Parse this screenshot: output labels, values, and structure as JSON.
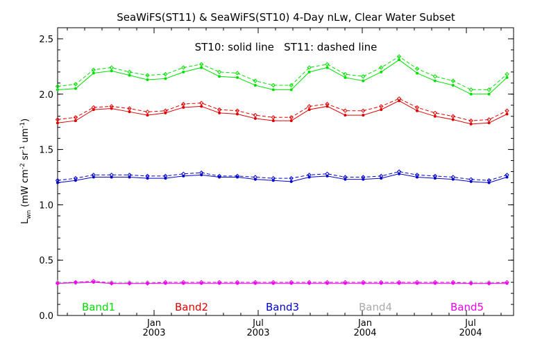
{
  "chart_data": {
    "type": "line",
    "title": "SeaWiFS(ST11) & SeaWiFS(ST10) 4-Day nLw, Clear Water Subset",
    "annotation": "ST10: solid line   ST11: dashed line",
    "ylabel": {
      "main": "L",
      "sub": "wn",
      "rest1": " (mW cm",
      "sup1": "-2",
      "rest2": " sr",
      "sup2": "-1",
      "rest3": " um",
      "sup3": "-1",
      "rest4": ")"
    },
    "ylim": [
      0,
      2.6
    ],
    "yticks": [
      0.0,
      0.5,
      1.0,
      1.5,
      2.0,
      2.5
    ],
    "ytick_labels": [
      "0.0",
      "0.5",
      "1.0",
      "1.5",
      "2.0",
      "2.5"
    ],
    "xticks": [
      {
        "month": "Jan",
        "year": "2003"
      },
      {
        "month": "Jul",
        "year": "2003"
      },
      {
        "month": "Jan",
        "year": "2004"
      },
      {
        "month": "Jul",
        "year": "2004"
      }
    ],
    "legend": [
      "Band1",
      "Band2",
      "Band3",
      "Band4",
      "Band5"
    ],
    "series": [
      {
        "name": "Band1",
        "color": "#00e000",
        "solid": [
          2.04,
          2.05,
          2.19,
          2.21,
          2.17,
          2.13,
          2.14,
          2.2,
          2.24,
          2.16,
          2.15,
          2.08,
          2.04,
          2.04,
          2.2,
          2.24,
          2.15,
          2.12,
          2.2,
          2.31,
          2.19,
          2.12,
          2.08,
          2.0,
          2.0,
          2.15
        ],
        "dashed": [
          2.07,
          2.09,
          2.22,
          2.24,
          2.2,
          2.17,
          2.18,
          2.24,
          2.27,
          2.2,
          2.19,
          2.12,
          2.08,
          2.08,
          2.24,
          2.27,
          2.18,
          2.16,
          2.24,
          2.34,
          2.23,
          2.16,
          2.12,
          2.04,
          2.04,
          2.18
        ]
      },
      {
        "name": "Band2",
        "color": "#e00000",
        "solid": [
          1.74,
          1.76,
          1.86,
          1.87,
          1.84,
          1.81,
          1.83,
          1.88,
          1.89,
          1.83,
          1.82,
          1.78,
          1.76,
          1.76,
          1.86,
          1.89,
          1.81,
          1.81,
          1.86,
          1.94,
          1.85,
          1.8,
          1.77,
          1.73,
          1.74,
          1.82
        ],
        "dashed": [
          1.77,
          1.79,
          1.88,
          1.89,
          1.87,
          1.84,
          1.85,
          1.91,
          1.92,
          1.86,
          1.85,
          1.81,
          1.79,
          1.79,
          1.89,
          1.91,
          1.85,
          1.85,
          1.89,
          1.96,
          1.88,
          1.83,
          1.8,
          1.76,
          1.77,
          1.85
        ]
      },
      {
        "name": "Band3",
        "color": "#0000cc",
        "solid": [
          1.2,
          1.22,
          1.25,
          1.25,
          1.25,
          1.24,
          1.24,
          1.26,
          1.27,
          1.25,
          1.25,
          1.23,
          1.22,
          1.21,
          1.25,
          1.26,
          1.23,
          1.23,
          1.24,
          1.28,
          1.25,
          1.24,
          1.23,
          1.21,
          1.2,
          1.25
        ],
        "dashed": [
          1.22,
          1.24,
          1.27,
          1.27,
          1.27,
          1.26,
          1.26,
          1.28,
          1.29,
          1.26,
          1.26,
          1.25,
          1.24,
          1.24,
          1.27,
          1.28,
          1.25,
          1.25,
          1.26,
          1.3,
          1.27,
          1.26,
          1.25,
          1.23,
          1.22,
          1.27
        ]
      },
      {
        "name": "Band4",
        "color": "#aaaaaa",
        "solid": [
          0.29,
          0.29,
          0.3,
          0.29,
          0.29,
          0.29,
          0.29,
          0.29,
          0.29,
          0.29,
          0.29,
          0.29,
          0.29,
          0.29,
          0.29,
          0.29,
          0.29,
          0.29,
          0.29,
          0.29,
          0.29,
          0.29,
          0.29,
          0.29,
          0.29,
          0.29
        ],
        "dashed": [
          0.3,
          0.3,
          0.31,
          0.3,
          0.3,
          0.3,
          0.3,
          0.3,
          0.3,
          0.3,
          0.3,
          0.3,
          0.3,
          0.3,
          0.3,
          0.3,
          0.3,
          0.3,
          0.3,
          0.3,
          0.3,
          0.3,
          0.3,
          0.3,
          0.3,
          0.3
        ]
      },
      {
        "name": "Band5",
        "color": "#ee00ee",
        "solid": [
          0.29,
          0.3,
          0.3,
          0.29,
          0.29,
          0.29,
          0.29,
          0.29,
          0.29,
          0.29,
          0.29,
          0.29,
          0.29,
          0.29,
          0.29,
          0.29,
          0.29,
          0.29,
          0.29,
          0.29,
          0.29,
          0.29,
          0.29,
          0.29,
          0.29,
          0.29
        ],
        "dashed": [
          0.29,
          0.3,
          0.31,
          0.29,
          0.29,
          0.29,
          0.3,
          0.3,
          0.3,
          0.3,
          0.3,
          0.3,
          0.3,
          0.3,
          0.3,
          0.3,
          0.3,
          0.3,
          0.3,
          0.3,
          0.3,
          0.3,
          0.3,
          0.29,
          0.29,
          0.3
        ]
      }
    ]
  }
}
